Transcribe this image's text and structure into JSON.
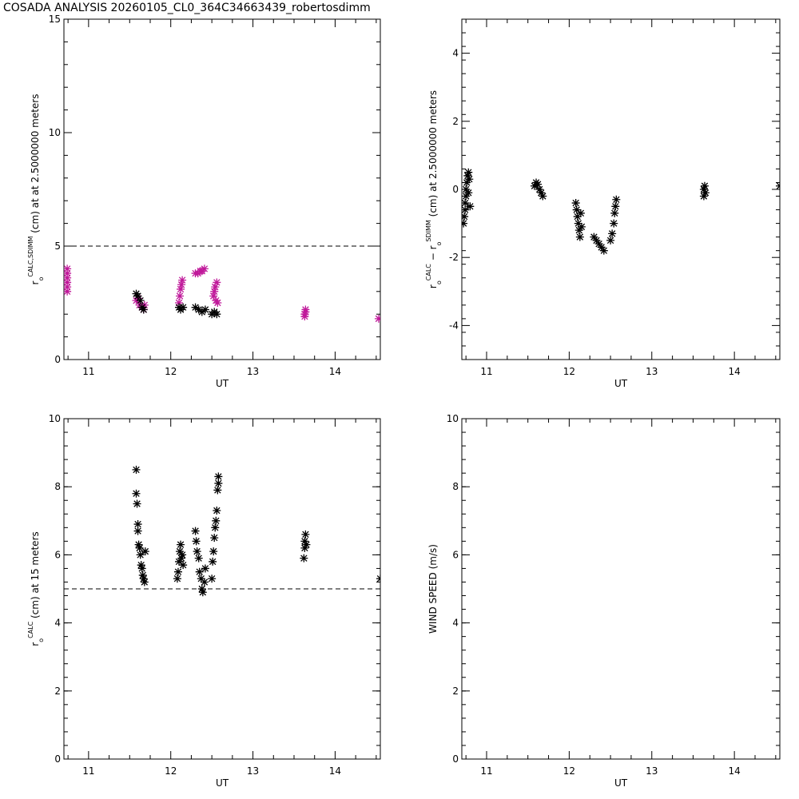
{
  "title": "COSADA ANALYSIS 20260105_CL0_364C34663439_robertosdimm",
  "colors": {
    "black": "#000000",
    "magenta": "#c0199a"
  },
  "chart_data": [
    {
      "id": "panel-tl",
      "type": "scatter",
      "xlabel": "UT",
      "ylabel_parts": [
        "r",
        "o",
        "CALC,SDIMM",
        " (cm) at  at 2.5000000 meters"
      ],
      "xlim": [
        10.7,
        14.55
      ],
      "ylim": [
        0,
        15
      ],
      "xticks": [
        11,
        12,
        13,
        14
      ],
      "yticks": [
        0,
        5,
        10,
        15
      ],
      "hline": 5,
      "series": [
        {
          "color": "magenta",
          "points": [
            [
              10.74,
              3.0
            ],
            [
              10.74,
              3.2
            ],
            [
              10.74,
              3.4
            ],
            [
              10.74,
              3.6
            ],
            [
              10.74,
              3.8
            ],
            [
              10.74,
              4.0
            ],
            [
              11.58,
              2.6
            ],
            [
              11.6,
              2.7
            ],
            [
              11.62,
              2.4
            ],
            [
              11.65,
              2.3
            ],
            [
              11.67,
              2.2
            ],
            [
              11.68,
              2.4
            ],
            [
              12.1,
              2.5
            ],
            [
              12.11,
              2.8
            ],
            [
              12.12,
              3.1
            ],
            [
              12.13,
              3.3
            ],
            [
              12.14,
              3.5
            ],
            [
              12.3,
              3.8
            ],
            [
              12.33,
              3.8
            ],
            [
              12.36,
              3.9
            ],
            [
              12.38,
              3.9
            ],
            [
              12.41,
              4.0
            ],
            [
              12.52,
              2.8
            ],
            [
              12.53,
              3.0
            ],
            [
              12.54,
              3.2
            ],
            [
              12.55,
              2.6
            ],
            [
              12.56,
              3.4
            ],
            [
              12.57,
              2.5
            ],
            [
              13.63,
              1.9
            ],
            [
              13.63,
              2.0
            ],
            [
              13.64,
              2.1
            ],
            [
              13.64,
              2.2
            ],
            [
              14.53,
              1.8
            ]
          ]
        },
        {
          "color": "black",
          "points": [
            [
              11.58,
              2.9
            ],
            [
              11.6,
              2.8
            ],
            [
              11.63,
              2.6
            ],
            [
              11.65,
              2.3
            ],
            [
              11.67,
              2.2
            ],
            [
              12.1,
              2.3
            ],
            [
              12.12,
              2.2
            ],
            [
              12.15,
              2.3
            ],
            [
              12.3,
              2.3
            ],
            [
              12.34,
              2.2
            ],
            [
              12.38,
              2.1
            ],
            [
              12.42,
              2.2
            ],
            [
              12.5,
              2.0
            ],
            [
              12.53,
              2.1
            ],
            [
              12.56,
              2.0
            ]
          ]
        }
      ]
    },
    {
      "id": "panel-tr",
      "type": "scatter",
      "xlabel": "UT",
      "ylabel_parts": [
        "r",
        "o",
        "CALC",
        " − r",
        "o",
        "SDIMM",
        " (cm) at 2.5000000 meters"
      ],
      "xlim": [
        10.7,
        14.55
      ],
      "ylim": [
        -5,
        5
      ],
      "xticks": [
        11,
        12,
        13,
        14
      ],
      "yticks": [
        -4,
        -2,
        0,
        2,
        4
      ],
      "series": [
        {
          "color": "black",
          "points": [
            [
              10.72,
              -1.0
            ],
            [
              10.73,
              -0.8
            ],
            [
              10.74,
              -0.6
            ],
            [
              10.74,
              -0.4
            ],
            [
              10.75,
              -0.2
            ],
            [
              10.75,
              0.0
            ],
            [
              10.76,
              0.2
            ],
            [
              10.77,
              0.4
            ],
            [
              10.78,
              0.5
            ],
            [
              10.78,
              -0.1
            ],
            [
              10.79,
              0.3
            ],
            [
              10.8,
              -0.5
            ],
            [
              11.58,
              0.1
            ],
            [
              11.6,
              0.2
            ],
            [
              11.62,
              0.15
            ],
            [
              11.64,
              0.0
            ],
            [
              11.66,
              -0.1
            ],
            [
              11.68,
              -0.2
            ],
            [
              12.08,
              -0.4
            ],
            [
              12.09,
              -0.6
            ],
            [
              12.1,
              -0.8
            ],
            [
              12.11,
              -1.0
            ],
            [
              12.12,
              -1.2
            ],
            [
              12.13,
              -1.4
            ],
            [
              12.14,
              -0.7
            ],
            [
              12.15,
              -1.1
            ],
            [
              12.3,
              -1.4
            ],
            [
              12.33,
              -1.5
            ],
            [
              12.36,
              -1.6
            ],
            [
              12.39,
              -1.7
            ],
            [
              12.42,
              -1.8
            ],
            [
              12.5,
              -1.5
            ],
            [
              12.52,
              -1.3
            ],
            [
              12.54,
              -1.0
            ],
            [
              12.55,
              -0.7
            ],
            [
              12.56,
              -0.5
            ],
            [
              12.57,
              -0.3
            ],
            [
              13.63,
              -0.2
            ],
            [
              13.63,
              0.0
            ],
            [
              13.64,
              0.1
            ],
            [
              13.65,
              -0.1
            ],
            [
              14.55,
              0.1
            ]
          ]
        }
      ]
    },
    {
      "id": "panel-bl",
      "type": "scatter",
      "xlabel": "UT",
      "ylabel_parts": [
        "r",
        "o",
        "CALC",
        " (cm) at 15 meters"
      ],
      "xlim": [
        10.7,
        14.55
      ],
      "ylim": [
        0,
        10
      ],
      "xticks": [
        11,
        12,
        13,
        14
      ],
      "yticks": [
        0,
        2,
        4,
        6,
        8,
        10
      ],
      "hline": 5,
      "series": [
        {
          "color": "black",
          "points": [
            [
              11.58,
              8.5
            ],
            [
              11.58,
              7.8
            ],
            [
              11.59,
              7.5
            ],
            [
              11.6,
              6.9
            ],
            [
              11.6,
              6.7
            ],
            [
              11.61,
              6.3
            ],
            [
              11.62,
              6.2
            ],
            [
              11.63,
              6.0
            ],
            [
              11.64,
              5.7
            ],
            [
              11.65,
              5.6
            ],
            [
              11.66,
              5.4
            ],
            [
              11.67,
              5.3
            ],
            [
              11.68,
              5.2
            ],
            [
              11.69,
              6.1
            ],
            [
              12.08,
              5.3
            ],
            [
              12.09,
              5.5
            ],
            [
              12.1,
              5.8
            ],
            [
              12.11,
              6.1
            ],
            [
              12.12,
              6.3
            ],
            [
              12.13,
              5.9
            ],
            [
              12.14,
              6.0
            ],
            [
              12.15,
              5.7
            ],
            [
              12.3,
              6.7
            ],
            [
              12.31,
              6.4
            ],
            [
              12.32,
              6.1
            ],
            [
              12.34,
              5.9
            ],
            [
              12.35,
              5.5
            ],
            [
              12.37,
              5.3
            ],
            [
              12.38,
              5.0
            ],
            [
              12.39,
              4.9
            ],
            [
              12.41,
              5.2
            ],
            [
              12.42,
              5.6
            ],
            [
              12.5,
              5.3
            ],
            [
              12.51,
              5.8
            ],
            [
              12.52,
              6.1
            ],
            [
              12.53,
              6.5
            ],
            [
              12.54,
              6.8
            ],
            [
              12.55,
              7.0
            ],
            [
              12.56,
              7.3
            ],
            [
              12.57,
              7.9
            ],
            [
              12.58,
              8.1
            ],
            [
              12.58,
              8.3
            ],
            [
              13.62,
              5.9
            ],
            [
              13.63,
              6.2
            ],
            [
              13.63,
              6.4
            ],
            [
              13.64,
              6.6
            ],
            [
              13.65,
              6.3
            ],
            [
              14.55,
              5.3
            ]
          ]
        }
      ]
    },
    {
      "id": "panel-br",
      "type": "scatter",
      "xlabel": "UT",
      "ylabel_parts": [
        "WIND SPEED (m/s)"
      ],
      "xlim": [
        10.7,
        14.55
      ],
      "ylim": [
        0,
        10
      ],
      "xticks": [
        11,
        12,
        13,
        14
      ],
      "yticks": [
        0,
        2,
        4,
        6,
        8,
        10
      ],
      "series": []
    }
  ]
}
